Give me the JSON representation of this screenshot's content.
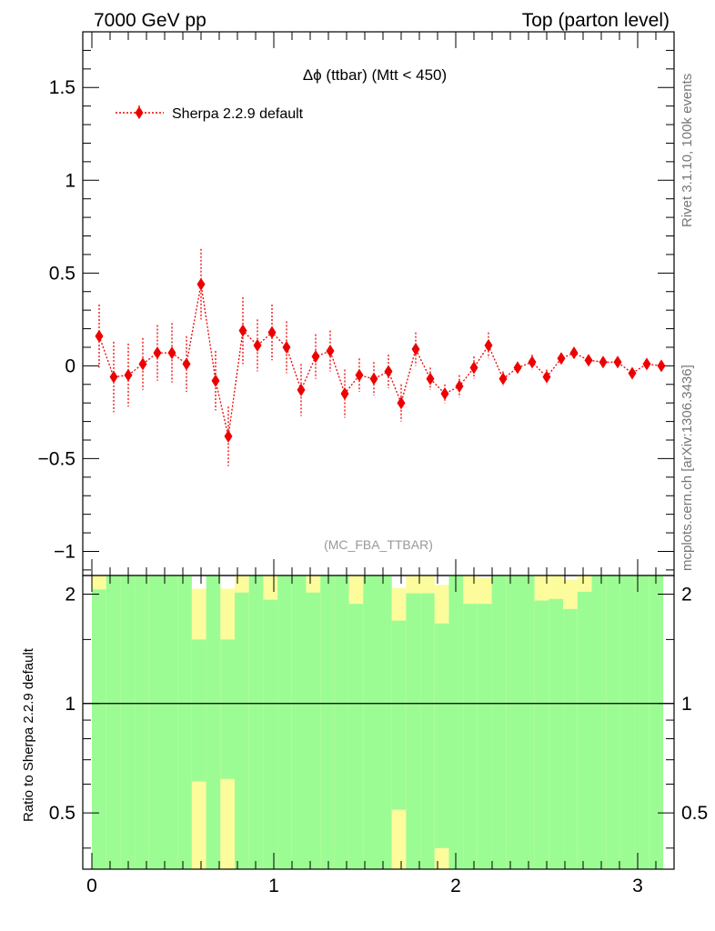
{
  "header": {
    "left": "7000 GeV pp",
    "right": "Top (parton level)"
  },
  "side_labels": {
    "rivet": "Rivet 3.1.10,  100k events",
    "mcplots": "mcplots.cern.ch [arXiv:1306.3436]"
  },
  "annotation": "(MC_FBA_TTBAR)",
  "ratio_ylabel": "Ratio to Sherpa 2.2.9 default",
  "colors": {
    "series": "#ee0000",
    "band_inner": "#9cfc94",
    "band_outer": "#fcfc9c"
  },
  "chart_data": [
    {
      "type": "scatter",
      "title": "Δϕ (ttbar) (Mtt < 450)",
      "xlim": [
        -0.05,
        3.2
      ],
      "ylim": [
        -1.13,
        1.8
      ],
      "yticks": [
        -1,
        -0.5,
        0,
        0.5,
        1,
        1.5
      ],
      "ytick_labels": [
        "−1",
        "−0.5",
        "0",
        "0.5",
        "1",
        "1.5"
      ],
      "series": [
        {
          "name": "Sherpa 2.2.9 default",
          "x": [
            0.04,
            0.12,
            0.2,
            0.28,
            0.36,
            0.44,
            0.52,
            0.6,
            0.68,
            0.75,
            0.83,
            0.91,
            0.99,
            1.07,
            1.15,
            1.23,
            1.31,
            1.39,
            1.47,
            1.55,
            1.63,
            1.7,
            1.78,
            1.86,
            1.94,
            2.02,
            2.1,
            2.18,
            2.26,
            2.34,
            2.42,
            2.5,
            2.58,
            2.65,
            2.73,
            2.81,
            2.89,
            2.97,
            3.05,
            3.13
          ],
          "y": [
            0.16,
            -0.06,
            -0.05,
            0.01,
            0.07,
            0.07,
            0.01,
            0.44,
            -0.08,
            -0.38,
            0.19,
            0.11,
            0.18,
            0.1,
            -0.13,
            0.05,
            0.08,
            -0.15,
            -0.05,
            -0.07,
            -0.03,
            -0.2,
            0.09,
            -0.07,
            -0.15,
            -0.11,
            -0.01,
            0.11,
            -0.07,
            -0.01,
            0.02,
            -0.06,
            0.04,
            0.07,
            0.03,
            0.02,
            0.02,
            -0.04,
            0.01,
            0.0
          ],
          "yerr": [
            0.17,
            0.19,
            0.17,
            0.14,
            0.15,
            0.16,
            0.15,
            0.19,
            0.16,
            0.16,
            0.18,
            0.14,
            0.15,
            0.14,
            0.14,
            0.12,
            0.11,
            0.13,
            0.09,
            0.09,
            0.09,
            0.1,
            0.09,
            0.06,
            0.05,
            0.06,
            0.06,
            0.07,
            0.04,
            0.03,
            0.04,
            0.04,
            0.03,
            0.03,
            0.03,
            0.02,
            0.02,
            0.02,
            0.02,
            0.02
          ]
        }
      ]
    },
    {
      "type": "area",
      "ylabel": "Ratio to Sherpa 2.2.9 default",
      "xlim": [
        -0.05,
        3.2
      ],
      "ylim": [
        0.35,
        2.25
      ],
      "xticks": [
        0,
        1,
        2,
        3
      ],
      "xtick_labels": [
        "0",
        "1",
        "2",
        "3"
      ],
      "yticks": [
        0.5,
        1,
        2
      ],
      "ytick_labels": [
        "0.5",
        "1",
        "2"
      ],
      "reference_line": 1,
      "bin_edges": [
        0,
        0.0785,
        0.157,
        0.2355,
        0.314,
        0.3925,
        0.471,
        0.5495,
        0.628,
        0.7065,
        0.785,
        0.8635,
        0.942,
        1.0205,
        1.099,
        1.1775,
        1.256,
        1.3345,
        1.413,
        1.4915,
        1.57,
        1.6485,
        1.727,
        1.8055,
        1.884,
        1.9625,
        2.041,
        2.1195,
        2.198,
        2.2765,
        2.355,
        2.4335,
        2.512,
        2.5905,
        2.669,
        2.7475,
        2.826,
        2.9045,
        2.983,
        3.0615,
        3.14
      ],
      "inner_band": [
        [
          0.35,
          2.06
        ],
        [
          0.35,
          2.3
        ],
        [
          0.35,
          2.3
        ],
        [
          0.35,
          2.3
        ],
        [
          0.35,
          2.3
        ],
        [
          0.35,
          2.3
        ],
        [
          0.35,
          2.3
        ],
        [
          0.61,
          1.5
        ],
        [
          0.35,
          2.3
        ],
        [
          0.62,
          1.5
        ],
        [
          0.35,
          2.02
        ],
        [
          0.35,
          2.3
        ],
        [
          0.35,
          1.93
        ],
        [
          0.35,
          2.3
        ],
        [
          0.35,
          2.3
        ],
        [
          0.35,
          2.02
        ],
        [
          0.35,
          2.3
        ],
        [
          0.35,
          2.3
        ],
        [
          0.35,
          1.88
        ],
        [
          0.35,
          2.3
        ],
        [
          0.35,
          2.3
        ],
        [
          0.51,
          1.69
        ],
        [
          0.35,
          2.01
        ],
        [
          0.35,
          2.01
        ],
        [
          0.4,
          1.66
        ],
        [
          0.35,
          2.3
        ],
        [
          0.35,
          1.88
        ],
        [
          0.35,
          1.88
        ],
        [
          0.35,
          2.3
        ],
        [
          0.35,
          2.3
        ],
        [
          0.35,
          2.3
        ],
        [
          0.35,
          1.92
        ],
        [
          0.35,
          1.94
        ],
        [
          0.35,
          1.82
        ],
        [
          0.35,
          2.03
        ],
        [
          0.35,
          2.3
        ],
        [
          0.35,
          2.3
        ],
        [
          0.35,
          2.3
        ],
        [
          0.35,
          2.3
        ],
        [
          0.35,
          2.3
        ]
      ],
      "outer_band": [
        [
          0.35,
          2.3
        ],
        [
          0.35,
          2.3
        ],
        [
          0.35,
          2.3
        ],
        [
          0.35,
          2.3
        ],
        [
          0.35,
          2.3
        ],
        [
          0.35,
          2.3
        ],
        [
          0.35,
          2.3
        ],
        [
          0.35,
          2.07
        ],
        [
          0.35,
          2.3
        ],
        [
          0.35,
          2.07
        ],
        [
          0.35,
          2.3
        ],
        [
          0.35,
          2.3
        ],
        [
          0.35,
          2.3
        ],
        [
          0.35,
          2.3
        ],
        [
          0.35,
          2.3
        ],
        [
          0.35,
          2.3
        ],
        [
          0.35,
          2.3
        ],
        [
          0.35,
          2.3
        ],
        [
          0.35,
          2.3
        ],
        [
          0.35,
          2.3
        ],
        [
          0.35,
          2.3
        ],
        [
          0.35,
          2.08
        ],
        [
          0.35,
          2.3
        ],
        [
          0.35,
          2.3
        ],
        [
          0.35,
          2.12
        ],
        [
          0.35,
          2.3
        ],
        [
          0.35,
          2.3
        ],
        [
          0.35,
          2.22
        ],
        [
          0.35,
          2.3
        ],
        [
          0.35,
          2.3
        ],
        [
          0.35,
          2.3
        ],
        [
          0.35,
          2.3
        ],
        [
          0.35,
          2.3
        ],
        [
          0.35,
          2.19
        ],
        [
          0.35,
          2.3
        ],
        [
          0.35,
          2.3
        ],
        [
          0.35,
          2.3
        ],
        [
          0.35,
          2.15
        ],
        [
          0.35,
          2.3
        ],
        [
          0.35,
          2.3
        ]
      ]
    }
  ]
}
